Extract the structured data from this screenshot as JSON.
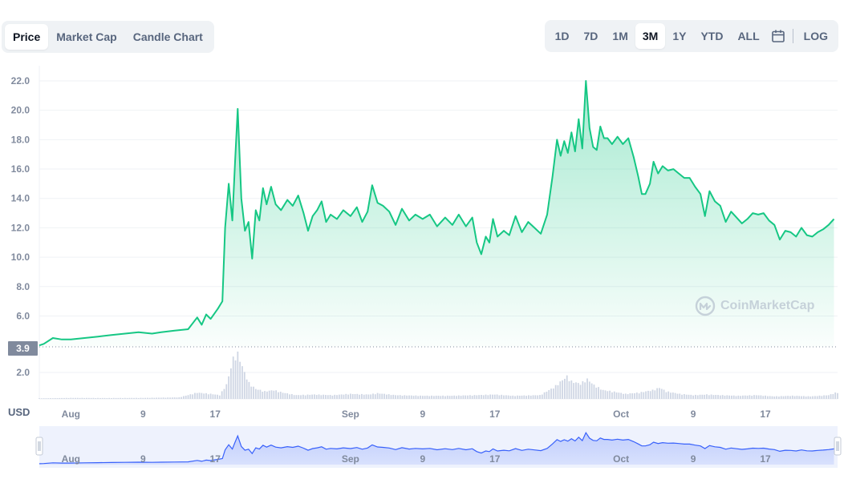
{
  "chart_type_tabs": [
    {
      "label": "Price",
      "active": true
    },
    {
      "label": "Market Cap",
      "active": false
    },
    {
      "label": "Candle Chart",
      "active": false
    }
  ],
  "range_tabs": [
    {
      "label": "1D",
      "active": false
    },
    {
      "label": "7D",
      "active": false
    },
    {
      "label": "1M",
      "active": false
    },
    {
      "label": "3M",
      "active": true
    },
    {
      "label": "1Y",
      "active": false
    },
    {
      "label": "YTD",
      "active": false
    },
    {
      "label": "ALL",
      "active": false
    }
  ],
  "log_label": "LOG",
  "calendar_icon": "calendar-icon",
  "currency_label": "USD",
  "current_price_label": "3.9",
  "watermark": {
    "text": "CoinMarketCap",
    "icon": "coinmarketcap-logo-icon"
  },
  "colors": {
    "line": "#16c784",
    "volume": "#cfd6e4",
    "navigator": "#3861fb"
  },
  "chart_data": {
    "type": "area",
    "title": "",
    "xlabel": "",
    "ylabel": "",
    "ylim": [
      3.9,
      22.0
    ],
    "y_ticks": [
      "22.0",
      "20.0",
      "18.0",
      "16.0",
      "14.0",
      "12.0",
      "10.0",
      "8.0",
      "6.0"
    ],
    "volume_ticks": [
      "2.0"
    ],
    "x_ticks": [
      {
        "label": "Aug",
        "day": 8
      },
      {
        "label": "9",
        "day": 16
      },
      {
        "label": "17",
        "day": 24
      },
      {
        "label": "Sep",
        "day": 39
      },
      {
        "label": "9",
        "day": 47
      },
      {
        "label": "17",
        "day": 55
      },
      {
        "label": "Oct",
        "day": 69
      },
      {
        "label": "9",
        "day": 77
      },
      {
        "label": "17",
        "day": 85
      }
    ],
    "x_range": [
      4.5,
      93
    ],
    "grid": true,
    "legend": "none",
    "series": [
      {
        "values": [
          [
            4.5,
            4.0
          ],
          [
            5.0,
            4.1
          ],
          [
            6.0,
            4.5
          ],
          [
            7.0,
            4.4
          ],
          [
            8.0,
            4.4
          ],
          [
            9.5,
            4.5
          ],
          [
            11.0,
            4.6
          ],
          [
            12.5,
            4.7
          ],
          [
            14.0,
            4.8
          ],
          [
            15.5,
            4.9
          ],
          [
            17.0,
            4.8
          ],
          [
            18.0,
            4.9
          ],
          [
            19.5,
            5.0
          ],
          [
            21.0,
            5.1
          ],
          [
            22.0,
            5.9
          ],
          [
            22.5,
            5.4
          ],
          [
            23.0,
            6.1
          ],
          [
            23.5,
            5.8
          ],
          [
            24.3,
            6.5
          ],
          [
            24.8,
            7.0
          ],
          [
            25.1,
            12.0
          ],
          [
            25.5,
            15.0
          ],
          [
            25.9,
            12.5
          ],
          [
            26.2,
            16.5
          ],
          [
            26.5,
            20.1
          ],
          [
            26.9,
            14.0
          ],
          [
            27.3,
            11.8
          ],
          [
            27.7,
            12.4
          ],
          [
            28.1,
            9.9
          ],
          [
            28.5,
            13.2
          ],
          [
            28.9,
            12.5
          ],
          [
            29.3,
            14.7
          ],
          [
            29.7,
            13.6
          ],
          [
            30.2,
            14.8
          ],
          [
            30.7,
            13.6
          ],
          [
            31.3,
            13.2
          ],
          [
            32.0,
            13.9
          ],
          [
            32.6,
            13.5
          ],
          [
            33.2,
            14.2
          ],
          [
            33.8,
            13.0
          ],
          [
            34.3,
            11.8
          ],
          [
            34.8,
            12.8
          ],
          [
            35.3,
            13.2
          ],
          [
            35.8,
            13.8
          ],
          [
            36.3,
            12.4
          ],
          [
            36.8,
            12.9
          ],
          [
            37.5,
            12.6
          ],
          [
            38.2,
            13.2
          ],
          [
            39.0,
            12.8
          ],
          [
            39.7,
            13.4
          ],
          [
            40.3,
            12.4
          ],
          [
            40.9,
            13.1
          ],
          [
            41.4,
            14.9
          ],
          [
            42.0,
            13.7
          ],
          [
            42.6,
            13.5
          ],
          [
            43.3,
            13.1
          ],
          [
            44.0,
            12.2
          ],
          [
            44.7,
            13.3
          ],
          [
            45.5,
            12.5
          ],
          [
            46.2,
            12.9
          ],
          [
            47.0,
            12.6
          ],
          [
            47.8,
            12.9
          ],
          [
            48.6,
            12.1
          ],
          [
            49.5,
            12.7
          ],
          [
            50.3,
            12.2
          ],
          [
            51.0,
            12.9
          ],
          [
            51.8,
            12.1
          ],
          [
            52.5,
            12.7
          ],
          [
            53.0,
            11.0
          ],
          [
            53.5,
            10.2
          ],
          [
            54.0,
            11.4
          ],
          [
            54.4,
            11.0
          ],
          [
            54.8,
            12.6
          ],
          [
            55.3,
            11.4
          ],
          [
            56.0,
            11.8
          ],
          [
            56.6,
            11.5
          ],
          [
            57.3,
            12.8
          ],
          [
            58.0,
            11.7
          ],
          [
            58.7,
            12.4
          ],
          [
            59.4,
            12.0
          ],
          [
            60.1,
            11.6
          ],
          [
            60.8,
            12.9
          ],
          [
            61.4,
            15.5
          ],
          [
            61.9,
            18.0
          ],
          [
            62.3,
            16.9
          ],
          [
            62.7,
            17.9
          ],
          [
            63.1,
            17.1
          ],
          [
            63.5,
            18.5
          ],
          [
            63.9,
            17.2
          ],
          [
            64.3,
            19.4
          ],
          [
            64.7,
            17.4
          ],
          [
            65.1,
            22.0
          ],
          [
            65.5,
            18.8
          ],
          [
            65.9,
            17.5
          ],
          [
            66.3,
            17.3
          ],
          [
            66.7,
            18.9
          ],
          [
            67.1,
            18.1
          ],
          [
            67.5,
            18.1
          ],
          [
            68.0,
            17.7
          ],
          [
            68.6,
            18.2
          ],
          [
            69.2,
            17.7
          ],
          [
            69.8,
            18.1
          ],
          [
            70.4,
            16.8
          ],
          [
            70.9,
            15.5
          ],
          [
            71.3,
            14.3
          ],
          [
            71.7,
            14.3
          ],
          [
            72.2,
            15.0
          ],
          [
            72.6,
            16.5
          ],
          [
            73.1,
            15.7
          ],
          [
            73.6,
            16.2
          ],
          [
            74.2,
            15.9
          ],
          [
            74.8,
            16.0
          ],
          [
            75.4,
            15.7
          ],
          [
            76.0,
            15.4
          ],
          [
            76.6,
            15.4
          ],
          [
            77.2,
            14.8
          ],
          [
            77.8,
            14.3
          ],
          [
            78.3,
            12.8
          ],
          [
            78.8,
            14.5
          ],
          [
            79.4,
            13.8
          ],
          [
            80.0,
            13.5
          ],
          [
            80.6,
            12.4
          ],
          [
            81.2,
            13.1
          ],
          [
            81.8,
            12.7
          ],
          [
            82.4,
            12.3
          ],
          [
            83.0,
            12.6
          ],
          [
            83.6,
            13.0
          ],
          [
            84.2,
            12.9
          ],
          [
            84.8,
            13.0
          ],
          [
            85.4,
            12.5
          ],
          [
            86.0,
            12.2
          ],
          [
            86.6,
            11.2
          ],
          [
            87.2,
            11.8
          ],
          [
            87.8,
            11.7
          ],
          [
            88.4,
            11.4
          ],
          [
            89.0,
            12.0
          ],
          [
            89.6,
            11.5
          ],
          [
            90.2,
            11.4
          ],
          [
            90.8,
            11.7
          ],
          [
            91.4,
            11.9
          ],
          [
            92.0,
            12.2
          ],
          [
            92.6,
            12.6
          ]
        ]
      }
    ],
    "volume": {
      "ylim": [
        0,
        4.0
      ],
      "values": [
        [
          5,
          0.05
        ],
        [
          8,
          0.08
        ],
        [
          12,
          0.07
        ],
        [
          16,
          0.08
        ],
        [
          20,
          0.12
        ],
        [
          22,
          0.5
        ],
        [
          23.5,
          0.4
        ],
        [
          24.5,
          0.3
        ],
        [
          25.3,
          1.2
        ],
        [
          25.7,
          2.4
        ],
        [
          26.1,
          3.5
        ],
        [
          26.5,
          3.6
        ],
        [
          26.9,
          2.8
        ],
        [
          27.3,
          2.0
        ],
        [
          27.8,
          1.2
        ],
        [
          28.5,
          0.8
        ],
        [
          29.5,
          0.6
        ],
        [
          30.5,
          0.7
        ],
        [
          31.5,
          0.5
        ],
        [
          33,
          0.3
        ],
        [
          35,
          0.35
        ],
        [
          37,
          0.3
        ],
        [
          39,
          0.4
        ],
        [
          41,
          0.35
        ],
        [
          42,
          0.45
        ],
        [
          44,
          0.3
        ],
        [
          47,
          0.25
        ],
        [
          50,
          0.25
        ],
        [
          53,
          0.3
        ],
        [
          55,
          0.35
        ],
        [
          57,
          0.25
        ],
        [
          60,
          0.3
        ],
        [
          61.5,
          0.9
        ],
        [
          62.5,
          1.5
        ],
        [
          63,
          1.8
        ],
        [
          63.5,
          1.4
        ],
        [
          64.5,
          1.2
        ],
        [
          65.2,
          1.6
        ],
        [
          66,
          1.1
        ],
        [
          67,
          0.7
        ],
        [
          68,
          0.6
        ],
        [
          69.5,
          0.4
        ],
        [
          71,
          0.5
        ],
        [
          72.5,
          0.7
        ],
        [
          73.3,
          0.9
        ],
        [
          74,
          0.6
        ],
        [
          75.5,
          0.4
        ],
        [
          77,
          0.3
        ],
        [
          78.5,
          0.35
        ],
        [
          80,
          0.3
        ],
        [
          82,
          0.25
        ],
        [
          84,
          0.3
        ],
        [
          86,
          0.2
        ],
        [
          88,
          0.25
        ],
        [
          90,
          0.2
        ],
        [
          92,
          0.3
        ],
        [
          92.8,
          0.5
        ]
      ]
    }
  }
}
